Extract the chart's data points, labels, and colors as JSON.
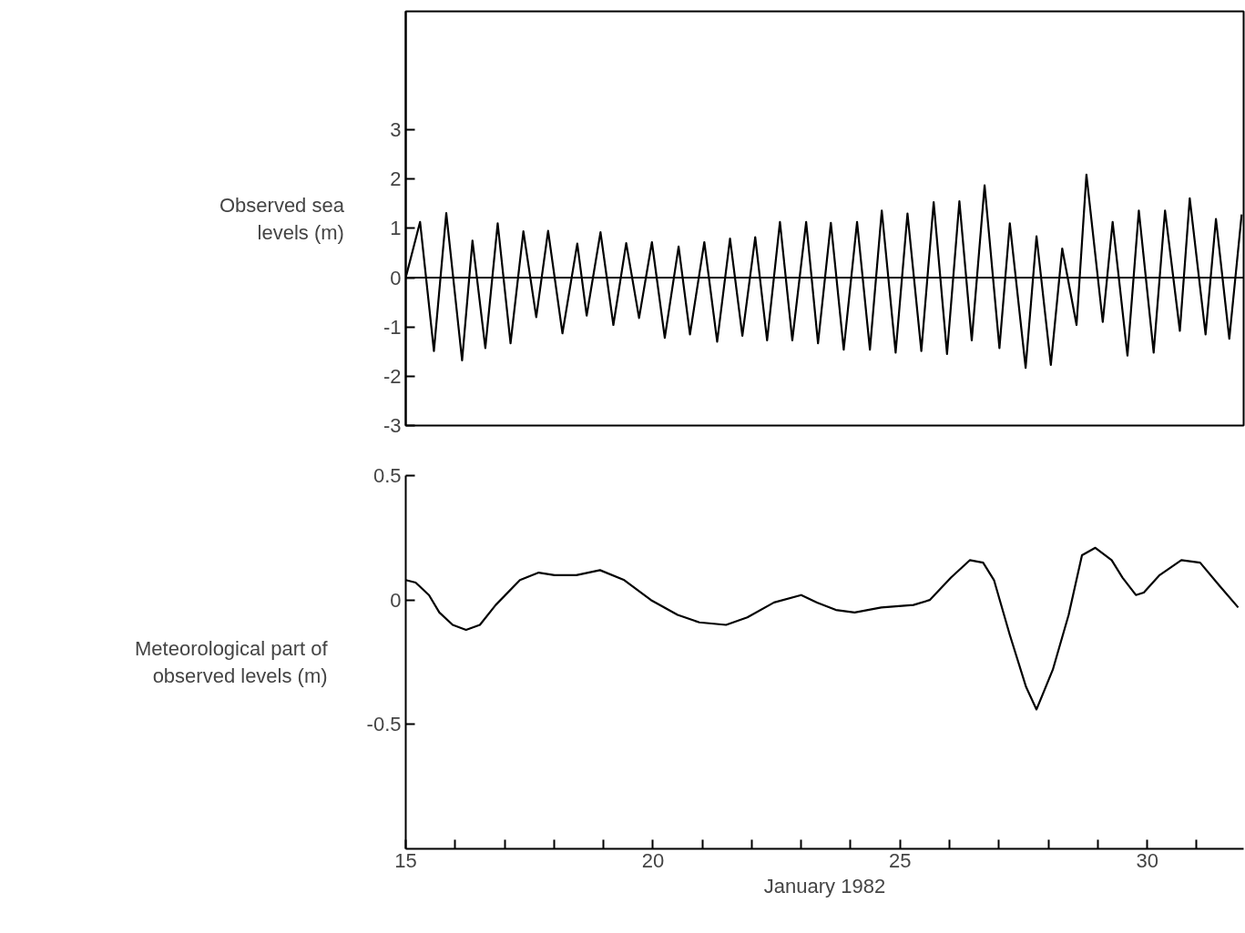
{
  "chart_data": [
    {
      "type": "line",
      "ylabel": "Observed sea levels (m)",
      "xlim": [
        15,
        31.95
      ],
      "ylim": [
        -3,
        5.4
      ],
      "yticks": [
        -3,
        -2,
        -1,
        0,
        1,
        2,
        3
      ],
      "tick_labels": "y",
      "grid": false,
      "marker": "none",
      "line_style": "solid",
      "ref_lines": [
        {
          "axis": "y",
          "value": 0,
          "color": "#000000"
        }
      ],
      "series": [
        {
          "color": "#000000",
          "x": [
            15.0,
            15.29,
            15.57,
            15.82,
            16.14,
            16.35,
            16.61,
            16.86,
            17.12,
            17.38,
            17.64,
            17.88,
            18.17,
            18.47,
            18.66,
            18.94,
            19.2,
            19.46,
            19.72,
            19.98,
            20.24,
            20.52,
            20.75,
            21.04,
            21.3,
            21.56,
            21.81,
            22.07,
            22.31,
            22.57,
            22.82,
            23.1,
            23.34,
            23.6,
            23.86,
            24.13,
            24.39,
            24.63,
            24.91,
            25.15,
            25.43,
            25.68,
            25.95,
            26.2,
            26.45,
            26.71,
            27.01,
            27.22,
            27.54,
            27.76,
            28.05,
            28.28,
            28.57,
            28.77,
            29.1,
            29.3,
            29.6,
            29.83,
            30.13,
            30.36,
            30.66,
            30.86,
            31.18,
            31.39,
            31.66,
            31.91
          ],
          "values": [
            0,
            1.13,
            -1.49,
            1.31,
            -1.68,
            0.75,
            -1.43,
            1.1,
            -1.33,
            0.94,
            -0.8,
            0.95,
            -1.13,
            0.69,
            -0.77,
            0.92,
            -0.96,
            0.7,
            -0.82,
            0.72,
            -1.22,
            0.63,
            -1.15,
            0.72,
            -1.3,
            0.79,
            -1.18,
            0.82,
            -1.27,
            1.13,
            -1.27,
            1.13,
            -1.33,
            1.11,
            -1.46,
            1.13,
            -1.46,
            1.36,
            -1.52,
            1.3,
            -1.49,
            1.53,
            -1.55,
            1.55,
            -1.27,
            1.87,
            -1.43,
            1.1,
            -1.83,
            0.84,
            -1.77,
            0.59,
            -0.96,
            2.09,
            -0.9,
            1.13,
            -1.58,
            1.36,
            -1.52,
            1.36,
            -1.08,
            1.61,
            -1.15,
            1.19,
            -1.24,
            1.28
          ]
        }
      ]
    },
    {
      "type": "line",
      "ylabel": "Meteorological part of observed levels (m)",
      "xlabel": "January 1982",
      "xlim": [
        15,
        31.95
      ],
      "ylim": [
        -1.0,
        0.5
      ],
      "xticks": [
        15,
        {
          "value": 16,
          "label": null
        },
        {
          "value": 17,
          "label": null
        },
        {
          "value": 18,
          "label": null
        },
        {
          "value": 19,
          "label": null
        },
        20,
        {
          "value": 21,
          "label": null
        },
        {
          "value": 22,
          "label": null
        },
        {
          "value": 23,
          "label": null
        },
        {
          "value": 24,
          "label": null
        },
        25,
        {
          "value": 26,
          "label": null
        },
        {
          "value": 27,
          "label": null
        },
        {
          "value": 28,
          "label": null
        },
        {
          "value": 29,
          "label": null
        },
        30,
        {
          "value": 31,
          "label": null
        }
      ],
      "yticks": [
        -0.5,
        0,
        0.5
      ],
      "grid": false,
      "marker": "none",
      "line_style": "solid",
      "series": [
        {
          "color": "#000000",
          "x": [
            15.0,
            15.2,
            15.47,
            15.68,
            15.95,
            16.22,
            16.5,
            16.82,
            17.31,
            17.69,
            18.01,
            18.45,
            18.93,
            19.42,
            19.96,
            20.5,
            20.94,
            21.48,
            21.91,
            22.45,
            23.0,
            23.32,
            23.7,
            24.08,
            24.62,
            25.27,
            25.6,
            26.03,
            26.41,
            26.68,
            26.9,
            27.22,
            27.55,
            27.76,
            28.09,
            28.41,
            28.68,
            28.95,
            29.28,
            29.5,
            29.77,
            29.93,
            30.25,
            30.69,
            31.07,
            31.45,
            31.84
          ],
          "values": [
            0.08,
            0.07,
            0.02,
            -0.05,
            -0.1,
            -0.12,
            -0.1,
            -0.02,
            0.08,
            0.11,
            0.1,
            0.1,
            0.12,
            0.08,
            0.0,
            -0.06,
            -0.09,
            -0.1,
            -0.07,
            -0.01,
            0.02,
            -0.01,
            -0.04,
            -0.05,
            -0.03,
            -0.02,
            0.0,
            0.09,
            0.16,
            0.15,
            0.08,
            -0.14,
            -0.35,
            -0.44,
            -0.28,
            -0.06,
            0.18,
            0.21,
            0.16,
            0.09,
            0.02,
            0.03,
            0.1,
            0.16,
            0.15,
            0.06,
            -0.03
          ]
        }
      ]
    }
  ]
}
